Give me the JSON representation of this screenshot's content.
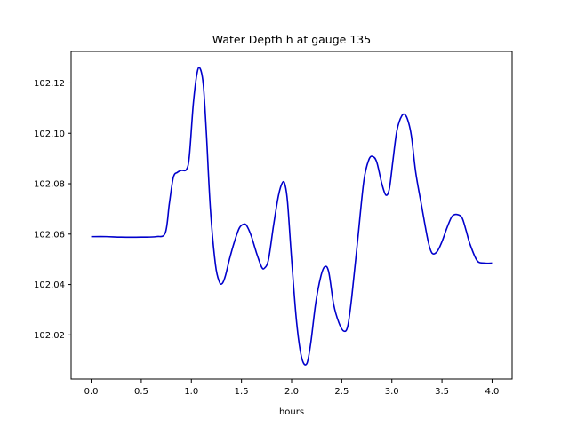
{
  "chart_data": {
    "type": "line",
    "title": "Water Depth h at gauge 135",
    "xlabel": "hours",
    "ylabel": "",
    "xlim": [
      -0.2,
      4.2
    ],
    "ylim": [
      102.0025,
      102.1325
    ],
    "xticks": [
      0.0,
      0.5,
      1.0,
      1.5,
      2.0,
      2.5,
      3.0,
      3.5,
      4.0
    ],
    "xtick_labels": [
      "0.0",
      "0.5",
      "1.0",
      "1.5",
      "2.0",
      "2.5",
      "3.0",
      "3.5",
      "4.0"
    ],
    "yticks": [
      102.02,
      102.04,
      102.06,
      102.08,
      102.1,
      102.12
    ],
    "ytick_labels": [
      "102.02",
      "102.04",
      "102.06",
      "102.08",
      "102.10",
      "102.12"
    ],
    "grid": false,
    "series": [
      {
        "name": "",
        "color": "#0000cc",
        "x": [
          0.0,
          0.15,
          0.3,
          0.5,
          0.65,
          0.74,
          0.78,
          0.82,
          0.86,
          0.9,
          0.95,
          0.98,
          1.02,
          1.06,
          1.09,
          1.12,
          1.15,
          1.19,
          1.24,
          1.28,
          1.31,
          1.34,
          1.38,
          1.43,
          1.48,
          1.53,
          1.56,
          1.6,
          1.65,
          1.7,
          1.73,
          1.77,
          1.82,
          1.87,
          1.91,
          1.935,
          1.96,
          2.0,
          2.05,
          2.1,
          2.15,
          2.19,
          2.24,
          2.29,
          2.33,
          2.37,
          2.42,
          2.47,
          2.52,
          2.56,
          2.6,
          2.66,
          2.72,
          2.77,
          2.81,
          2.85,
          2.9,
          2.94,
          2.975,
          3.01,
          3.05,
          3.1,
          3.14,
          3.175,
          3.2,
          3.24,
          3.3,
          3.36,
          3.4,
          3.45,
          3.5,
          3.55,
          3.6,
          3.65,
          3.7,
          3.74,
          3.78,
          3.85,
          3.92,
          4.0
        ],
        "y": [
          102.059,
          102.059,
          102.0588,
          102.0588,
          102.059,
          102.0605,
          102.072,
          102.0825,
          102.0845,
          102.0853,
          102.0856,
          102.091,
          102.112,
          102.1245,
          102.1255,
          102.119,
          102.1,
          102.07,
          102.048,
          102.041,
          102.0405,
          102.0435,
          102.05,
          102.057,
          102.0625,
          102.064,
          102.0628,
          102.059,
          102.0525,
          102.047,
          102.0465,
          102.05,
          102.0635,
          102.0755,
          102.0805,
          102.0795,
          102.0725,
          102.05,
          102.025,
          102.011,
          102.0085,
          102.0165,
          102.0325,
          102.043,
          102.047,
          102.045,
          102.032,
          102.025,
          102.0215,
          102.0235,
          102.035,
          102.058,
          102.081,
          102.0895,
          102.0908,
          102.0885,
          102.08,
          102.0755,
          102.078,
          102.089,
          102.101,
          102.107,
          102.107,
          102.103,
          102.0975,
          102.084,
          102.0705,
          102.0575,
          102.0525,
          102.053,
          102.057,
          102.0625,
          102.067,
          102.0678,
          102.0665,
          102.0615,
          102.056,
          102.0495,
          102.0485,
          102.0485
        ]
      }
    ]
  }
}
